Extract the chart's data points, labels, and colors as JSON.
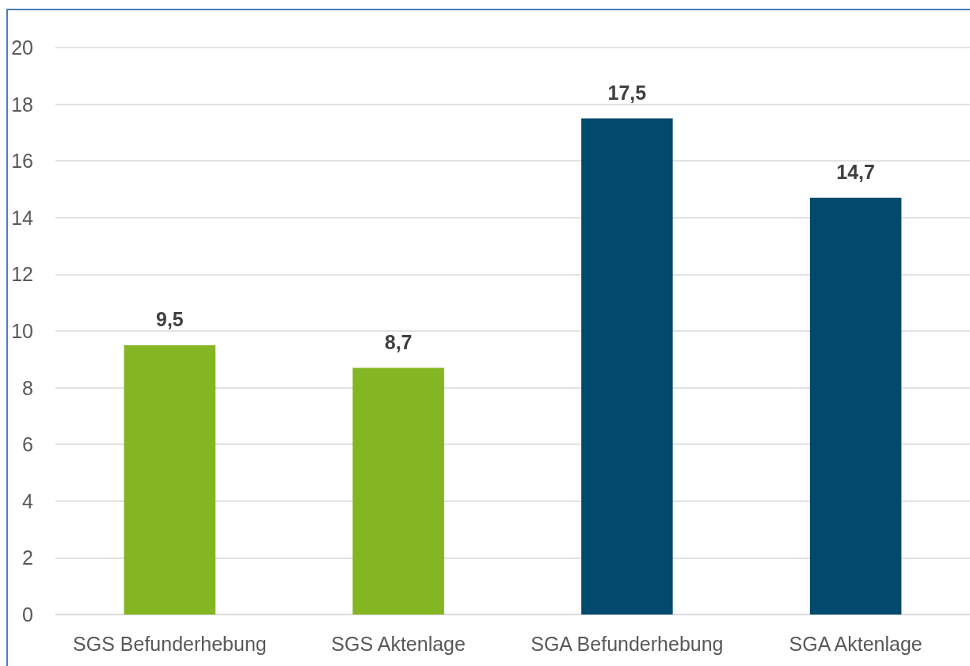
{
  "chart_data": {
    "type": "bar",
    "categories": [
      "SGS Befunderhebung",
      "SGS Aktenlage",
      "SGA Befunderhebung",
      "SGA Aktenlage"
    ],
    "values": [
      9.5,
      8.7,
      17.5,
      14.7
    ],
    "colors": [
      "#84b523",
      "#84b523",
      "#024a6d",
      "#024a6d"
    ],
    "value_labels": [
      "9,5",
      "8,7",
      "17,5",
      "14,7"
    ],
    "ylim": [
      0,
      20
    ],
    "yticks": [
      0,
      2,
      4,
      6,
      8,
      10,
      12,
      14,
      16,
      18,
      20
    ],
    "grid": "y"
  }
}
